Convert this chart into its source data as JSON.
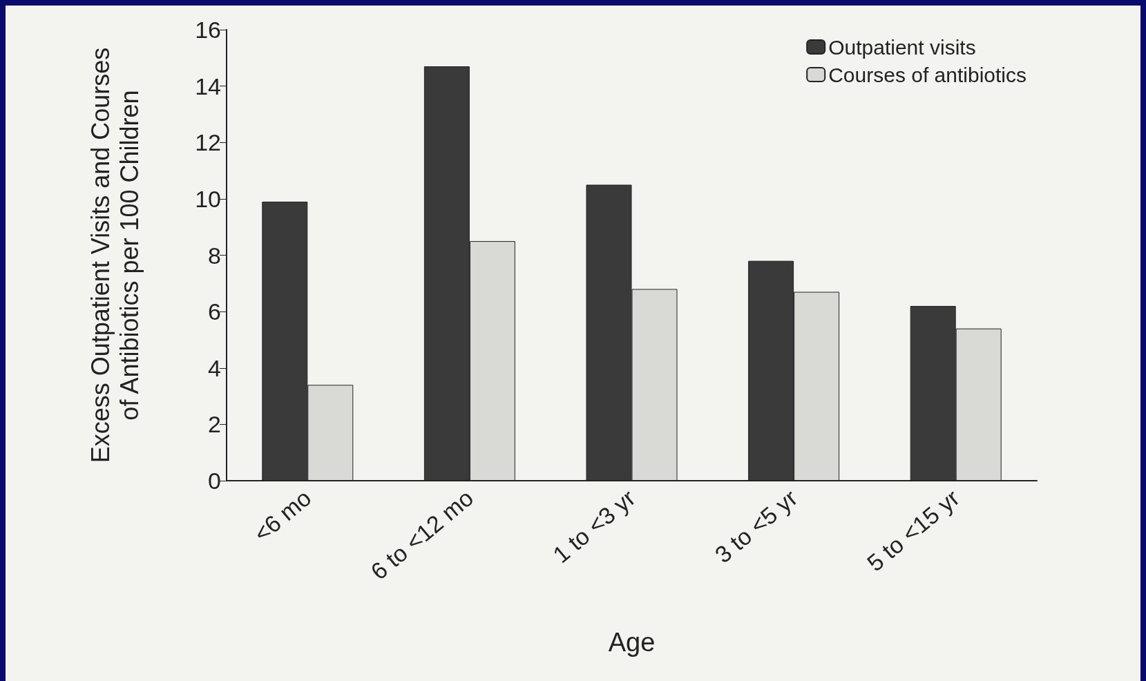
{
  "chart_data": {
    "type": "bar",
    "xlabel": "Age",
    "ylabel": "Excess Outpatient Visits and Courses\nof Antibiotics per 100 Children",
    "categories": [
      "<6 mo",
      "6 to <12 mo",
      "1 to <3 yr",
      "3 to <5 yr",
      "5 to <15 yr"
    ],
    "series": [
      {
        "name": "Outpatient visits",
        "color": "#3a3a3a",
        "values": [
          9.9,
          14.7,
          10.5,
          7.8,
          6.2
        ]
      },
      {
        "name": "Courses of antibiotics",
        "color": "#d9d9d6",
        "values": [
          3.4,
          8.5,
          6.8,
          6.7,
          5.4
        ]
      }
    ],
    "ylim": [
      0,
      16
    ],
    "yticks": [
      0,
      2,
      4,
      6,
      8,
      10,
      12,
      14,
      16
    ],
    "grid": false,
    "legend": "top right"
  }
}
